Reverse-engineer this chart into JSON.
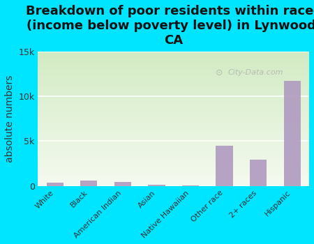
{
  "title": "Breakdown of poor residents within races\n(income below poverty level) in Lynwood,\nCA",
  "categories": [
    "White",
    "Black",
    "American Indian",
    "Asian",
    "Native Hawaiian",
    "Other race",
    "2+ races",
    "Hispanic"
  ],
  "values": [
    350,
    600,
    450,
    80,
    30,
    4500,
    2900,
    11700
  ],
  "bar_color": "#b09ac0",
  "ylabel": "absolute numbers",
  "ylim": [
    0,
    15000
  ],
  "yticks": [
    0,
    5000,
    10000,
    15000
  ],
  "ytick_labels": [
    "0",
    "5k",
    "10k",
    "15k"
  ],
  "background_outer": "#00e5ff",
  "background_plot_bottom": "#f0f5e8",
  "grid_color": "#ffffff",
  "watermark": "City-Data.com",
  "title_fontsize": 13,
  "ylabel_fontsize": 10
}
